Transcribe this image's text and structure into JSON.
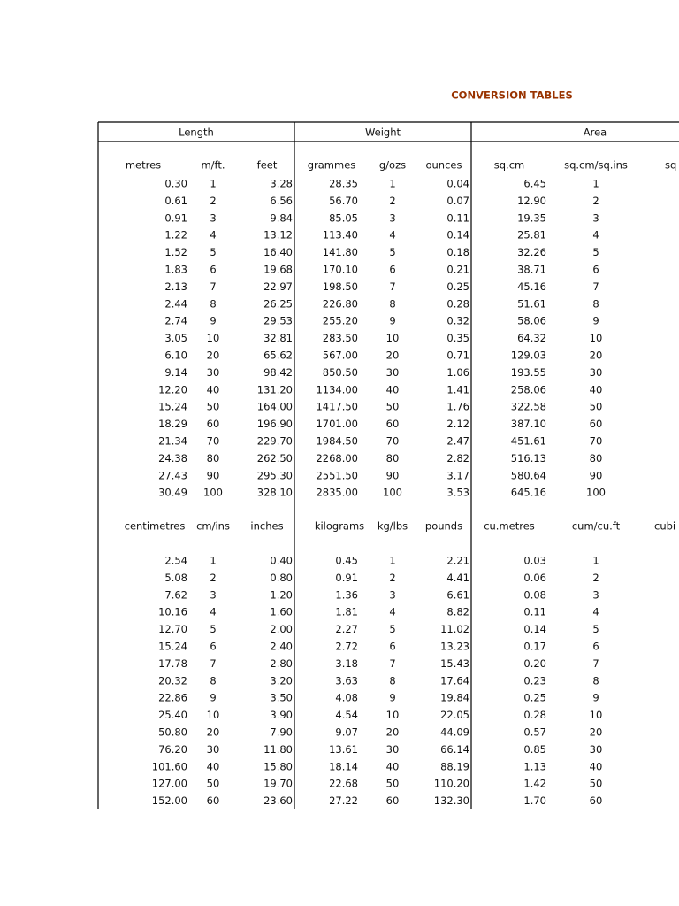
{
  "title": "CONVERSION TABLES",
  "groups": [
    "Length",
    "Weight",
    "Area"
  ],
  "sections": [
    {
      "headers": [
        "metres",
        "m/ft.",
        "feet",
        "grammes",
        "g/ozs",
        "ounces",
        "sq.cm",
        "sq.cm/sq.ins",
        "sq"
      ],
      "rows": [
        [
          "0.30",
          "1",
          "3.28",
          "28.35",
          "1",
          "0.04",
          "6.45",
          "1"
        ],
        [
          "0.61",
          "2",
          "6.56",
          "56.70",
          "2",
          "0.07",
          "12.90",
          "2"
        ],
        [
          "0.91",
          "3",
          "9.84",
          "85.05",
          "3",
          "0.11",
          "19.35",
          "3"
        ],
        [
          "1.22",
          "4",
          "13.12",
          "113.40",
          "4",
          "0.14",
          "25.81",
          "4"
        ],
        [
          "1.52",
          "5",
          "16.40",
          "141.80",
          "5",
          "0.18",
          "32.26",
          "5"
        ],
        [
          "1.83",
          "6",
          "19.68",
          "170.10",
          "6",
          "0.21",
          "38.71",
          "6"
        ],
        [
          "2.13",
          "7",
          "22.97",
          "198.50",
          "7",
          "0.25",
          "45.16",
          "7"
        ],
        [
          "2.44",
          "8",
          "26.25",
          "226.80",
          "8",
          "0.28",
          "51.61",
          "8"
        ],
        [
          "2.74",
          "9",
          "29.53",
          "255.20",
          "9",
          "0.32",
          "58.06",
          "9"
        ],
        [
          "3.05",
          "10",
          "32.81",
          "283.50",
          "10",
          "0.35",
          "64.32",
          "10"
        ],
        [
          "6.10",
          "20",
          "65.62",
          "567.00",
          "20",
          "0.71",
          "129.03",
          "20"
        ],
        [
          "9.14",
          "30",
          "98.42",
          "850.50",
          "30",
          "1.06",
          "193.55",
          "30"
        ],
        [
          "12.20",
          "40",
          "131.20",
          "1134.00",
          "40",
          "1.41",
          "258.06",
          "40"
        ],
        [
          "15.24",
          "50",
          "164.00",
          "1417.50",
          "50",
          "1.76",
          "322.58",
          "50"
        ],
        [
          "18.29",
          "60",
          "196.90",
          "1701.00",
          "60",
          "2.12",
          "387.10",
          "60"
        ],
        [
          "21.34",
          "70",
          "229.70",
          "1984.50",
          "70",
          "2.47",
          "451.61",
          "70"
        ],
        [
          "24.38",
          "80",
          "262.50",
          "2268.00",
          "80",
          "2.82",
          "516.13",
          "80"
        ],
        [
          "27.43",
          "90",
          "295.30",
          "2551.50",
          "90",
          "3.17",
          "580.64",
          "90"
        ],
        [
          "30.49",
          "100",
          "328.10",
          "2835.00",
          "100",
          "3.53",
          "645.16",
          "100"
        ]
      ]
    },
    {
      "headers": [
        "centimetres",
        "cm/ins",
        "inches",
        "kilograms",
        "kg/lbs",
        "pounds",
        "cu.metres",
        "cum/cu.ft",
        "cubi"
      ],
      "rows": [
        [
          "2.54",
          "1",
          "0.40",
          "0.45",
          "1",
          "2.21",
          "0.03",
          "1"
        ],
        [
          "5.08",
          "2",
          "0.80",
          "0.91",
          "2",
          "4.41",
          "0.06",
          "2"
        ],
        [
          "7.62",
          "3",
          "1.20",
          "1.36",
          "3",
          "6.61",
          "0.08",
          "3"
        ],
        [
          "10.16",
          "4",
          "1.60",
          "1.81",
          "4",
          "8.82",
          "0.11",
          "4"
        ],
        [
          "12.70",
          "5",
          "2.00",
          "2.27",
          "5",
          "11.02",
          "0.14",
          "5"
        ],
        [
          "15.24",
          "6",
          "2.40",
          "2.72",
          "6",
          "13.23",
          "0.17",
          "6"
        ],
        [
          "17.78",
          "7",
          "2.80",
          "3.18",
          "7",
          "15.43",
          "0.20",
          "7"
        ],
        [
          "20.32",
          "8",
          "3.20",
          "3.63",
          "8",
          "17.64",
          "0.23",
          "8"
        ],
        [
          "22.86",
          "9",
          "3.50",
          "4.08",
          "9",
          "19.84",
          "0.25",
          "9"
        ],
        [
          "25.40",
          "10",
          "3.90",
          "4.54",
          "10",
          "22.05",
          "0.28",
          "10"
        ],
        [
          "50.80",
          "20",
          "7.90",
          "9.07",
          "20",
          "44.09",
          "0.57",
          "20"
        ],
        [
          "76.20",
          "30",
          "11.80",
          "13.61",
          "30",
          "66.14",
          "0.85",
          "30"
        ],
        [
          "101.60",
          "40",
          "15.80",
          "18.14",
          "40",
          "88.19",
          "1.13",
          "40"
        ],
        [
          "127.00",
          "50",
          "19.70",
          "22.68",
          "50",
          "110.20",
          "1.42",
          "50"
        ],
        [
          "152.00",
          "60",
          "23.60",
          "27.22",
          "60",
          "132.30",
          "1.70",
          "60"
        ]
      ]
    }
  ]
}
